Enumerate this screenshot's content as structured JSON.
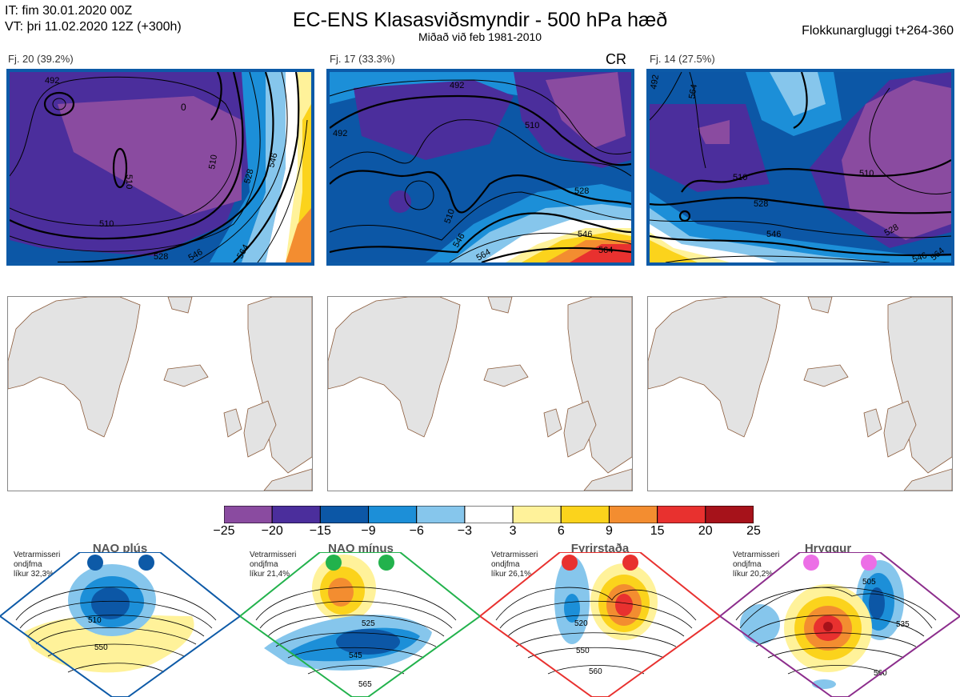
{
  "header": {
    "it_line": "IT: fim 30.01.2020 00Z",
    "vt_line": "VT: þri 11.02.2020 12Z  (+300h)",
    "title": "EC-ENS Klasasviðsmyndir - 500 hPa hæð",
    "subtitle": "Miðað við feb 1981-2010",
    "window": "Flokkunargluggi t+264-360"
  },
  "clusters": [
    {
      "label": "Fj. 20 (39.2%)",
      "extra": "",
      "contours": [
        "492",
        "510",
        "510",
        "510",
        "528",
        "546",
        "564",
        "528",
        "546",
        "0"
      ]
    },
    {
      "label": "Fj. 17 (33.3%)",
      "extra": "CR",
      "contours": [
        "492",
        "492",
        "510",
        "528",
        "546",
        "564",
        "564",
        "546",
        "510"
      ]
    },
    {
      "label": "Fj. 14 (27.5%)",
      "extra": "",
      "contours": [
        "492",
        "510",
        "528",
        "546",
        "510",
        "528",
        "546",
        "564",
        "564"
      ]
    }
  ],
  "colorbar": {
    "ticks": [
      "−25",
      "−20",
      "−15",
      "−9",
      "−6",
      "−3",
      "3",
      "6",
      "9",
      "15",
      "20",
      "25"
    ],
    "colors": [
      "#8a4ba0",
      "#4b2e9c",
      "#0c57a6",
      "#1c8fd8",
      "#86c6ec",
      "#ffffff",
      "#fff29a",
      "#fbd31c",
      "#f38d30",
      "#e8312f",
      "#a6121a"
    ]
  },
  "regimes": [
    {
      "title": "NAO plús",
      "info": [
        "Vetrarmisseri",
        "ondjfma",
        "líkur 32,3%"
      ],
      "dot_color": "#0d5aa7",
      "border_color": "#0d5aa7",
      "contours": [
        "510",
        "550"
      ]
    },
    {
      "title": "NAO mínus",
      "info": [
        "Vetrarmisseri",
        "ondjfma",
        "líkur 21,4%"
      ],
      "dot_color": "#22b24c",
      "border_color": "#22b24c",
      "contours": [
        "525",
        "545",
        "565"
      ]
    },
    {
      "title": "Fyrirstaða",
      "info": [
        "Vetrarmisseri",
        "ondjfma",
        "líkur 26,1%"
      ],
      "dot_color": "#e8312f",
      "border_color": "#e8312f",
      "contours": [
        "520",
        "550",
        "560"
      ]
    },
    {
      "title": "Hryggur",
      "info": [
        "Vetrarmisseri",
        "ondjfma",
        "líkur 20,2%"
      ],
      "dot_color": "#ec6fe6",
      "border_color": "#8c2d8c",
      "contours": [
        "505",
        "535",
        "560"
      ]
    }
  ],
  "chart_data": [
    {
      "type": "heatmap",
      "title": "Fj. 20 (39.2%)",
      "variable": "500 hPa height anomaly (dam)",
      "contour_levels": [
        492,
        510,
        528,
        546,
        564
      ]
    },
    {
      "type": "heatmap",
      "title": "Fj. 17 (33.3%)",
      "variable": "500 hPa height anomaly (dam)",
      "contour_levels": [
        492,
        510,
        528,
        546,
        564
      ]
    },
    {
      "type": "heatmap",
      "title": "Fj. 14 (27.5%)",
      "variable": "500 hPa height anomaly (dam)",
      "contour_levels": [
        492,
        510,
        528,
        546,
        564
      ]
    },
    {
      "type": "heatmap",
      "title": "NAO plús",
      "probability": "32,3%",
      "contour_levels": [
        510,
        550
      ]
    },
    {
      "type": "heatmap",
      "title": "NAO mínus",
      "probability": "21,4%",
      "contour_levels": [
        525,
        545,
        565
      ]
    },
    {
      "type": "heatmap",
      "title": "Fyrirstaða",
      "probability": "26,1%",
      "contour_levels": [
        520,
        550,
        560
      ]
    },
    {
      "type": "heatmap",
      "title": "Hryggur",
      "probability": "20,2%",
      "contour_levels": [
        505,
        535,
        560
      ]
    }
  ]
}
